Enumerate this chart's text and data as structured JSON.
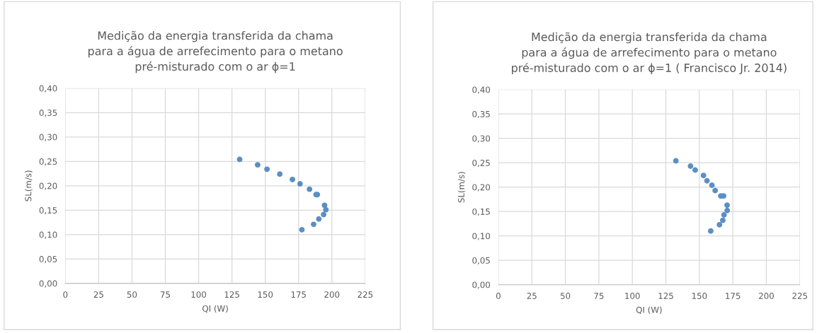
{
  "chart_data": [
    {
      "type": "scatter",
      "title": "Medição da energia transferida da chama\npara a água de arrefecimento para o metano\npré-misturado com o ar ϕ=1",
      "xlabel": "QI (W)",
      "ylabel": "SL(m/s)",
      "grid": true,
      "marker": "circle",
      "legend": false,
      "xlim": [
        0,
        225
      ],
      "xticks": [
        0,
        25,
        50,
        75,
        100,
        125,
        150,
        175,
        200,
        225
      ],
      "ylim": [
        0,
        0.4
      ],
      "yticks": [
        {
          "value": 0,
          "label": "0,00"
        },
        {
          "value": 0.05,
          "label": "0,05"
        },
        {
          "value": 0.1,
          "label": "0,10"
        },
        {
          "value": 0.15,
          "label": "0,15"
        },
        {
          "value": 0.2,
          "label": "0,20"
        },
        {
          "value": 0.25,
          "label": "0,25"
        },
        {
          "value": 0.3,
          "label": "0,30"
        },
        {
          "value": 0.35,
          "label": "0,35"
        },
        {
          "value": 0.4,
          "label": "0,40"
        }
      ],
      "series": [
        {
          "color": "#5b8fc4",
          "x": [
            130.8,
            144.3,
            151.3,
            160.9,
            170.4,
            176.1,
            183.2,
            188.1,
            189.1,
            194.5,
            195.5,
            193.8,
            190.2,
            186.3,
            177.5
          ],
          "values": [
            0.254,
            0.243,
            0.234,
            0.224,
            0.213,
            0.204,
            0.193,
            0.182,
            0.182,
            0.16,
            0.151,
            0.141,
            0.132,
            0.121,
            0.11
          ]
        }
      ]
    },
    {
      "type": "scatter",
      "title": "Medição da energia transferida da chama\npara a água de arrefecimento para o metano\npré-misturado com o ar ϕ=1 ( Francisco Jr. 2014)",
      "xlabel": "QI (W)",
      "ylabel": "SL(m/s)",
      "grid": true,
      "marker": "circle",
      "legend": false,
      "xlim": [
        0,
        225
      ],
      "xticks": [
        0,
        25,
        50,
        75,
        100,
        125,
        150,
        175,
        200,
        225
      ],
      "ylim": [
        0,
        0.4
      ],
      "yticks": [
        {
          "value": 0,
          "label": "0,00"
        },
        {
          "value": 0.05,
          "label": "0,05"
        },
        {
          "value": 0.1,
          "label": "0,10"
        },
        {
          "value": 0.15,
          "label": "0,15"
        },
        {
          "value": 0.2,
          "label": "0,20"
        },
        {
          "value": 0.25,
          "label": "0,25"
        },
        {
          "value": 0.3,
          "label": "0,30"
        },
        {
          "value": 0.35,
          "label": "0,35"
        },
        {
          "value": 0.4,
          "label": "0,40"
        }
      ],
      "series": [
        {
          "color": "#5b8fc4",
          "x": [
            132.5,
            143.4,
            146.9,
            153.1,
            155.7,
            159.4,
            161.8,
            166.0,
            168.1,
            170.7,
            170.8,
            168.4,
            167.5,
            165.0,
            158.5
          ],
          "values": [
            0.254,
            0.243,
            0.235,
            0.224,
            0.213,
            0.204,
            0.193,
            0.182,
            0.182,
            0.163,
            0.152,
            0.143,
            0.132,
            0.123,
            0.11
          ]
        }
      ]
    }
  ]
}
